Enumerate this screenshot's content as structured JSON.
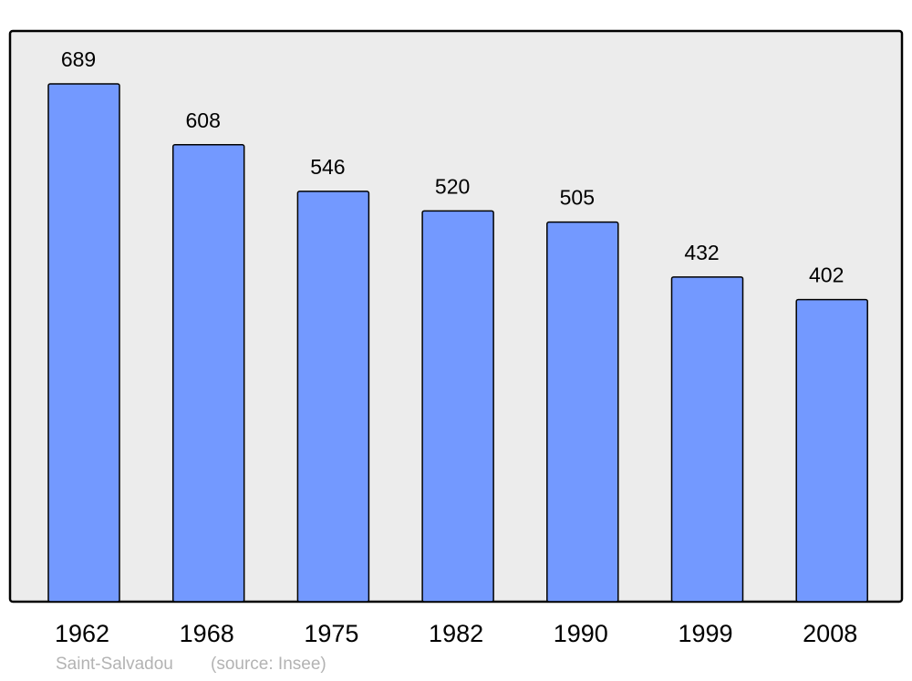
{
  "chart_data": {
    "type": "bar",
    "categories": [
      "1962",
      "1968",
      "1975",
      "1982",
      "1990",
      "1999",
      "2008"
    ],
    "values": [
      689,
      608,
      546,
      520,
      505,
      432,
      402
    ],
    "title": "",
    "xlabel": "",
    "ylabel": "",
    "ylim": [
      0,
      689
    ],
    "grid": false,
    "colors": {
      "bar": "#7399ff",
      "background": "#ececec",
      "border": "#000000"
    }
  },
  "footer": {
    "place": "Saint-Salvadou",
    "source": "(source: Insee)"
  }
}
